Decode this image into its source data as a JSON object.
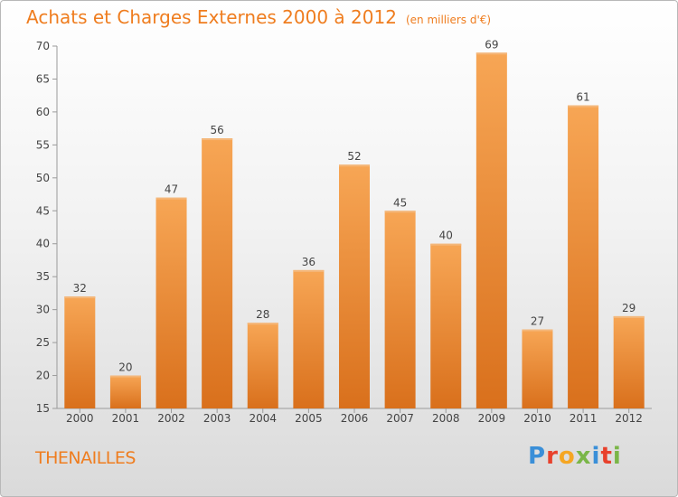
{
  "header": {
    "title": "Achats et Charges Externes 2000 à 2012",
    "subtitle": "(en milliers d'€)"
  },
  "footer": {
    "commune": "THENAILLES",
    "brand": "Proxiti",
    "brand_colors": [
      "#3a8fd8",
      "#e8412c",
      "#f5a623",
      "#7ab648",
      "#3a8fd8",
      "#e8412c",
      "#7ab648"
    ]
  },
  "chart_data": {
    "type": "bar",
    "categories": [
      "2000",
      "2001",
      "2002",
      "2003",
      "2004",
      "2005",
      "2006",
      "2007",
      "2008",
      "2009",
      "2010",
      "2011",
      "2012"
    ],
    "values": [
      32,
      20,
      47,
      56,
      28,
      36,
      52,
      45,
      40,
      69,
      27,
      61,
      29
    ],
    "title": "Achats et Charges Externes 2000 à 2012",
    "subtitle": "(en milliers d'€)",
    "ylim": [
      15,
      70
    ],
    "yticks": [
      15,
      20,
      25,
      30,
      35,
      40,
      45,
      50,
      55,
      60,
      65,
      70
    ],
    "grid": false,
    "bar_color_top": "#f7a655",
    "bar_color_bottom": "#d9701c",
    "accent": "#ef7d1f"
  }
}
